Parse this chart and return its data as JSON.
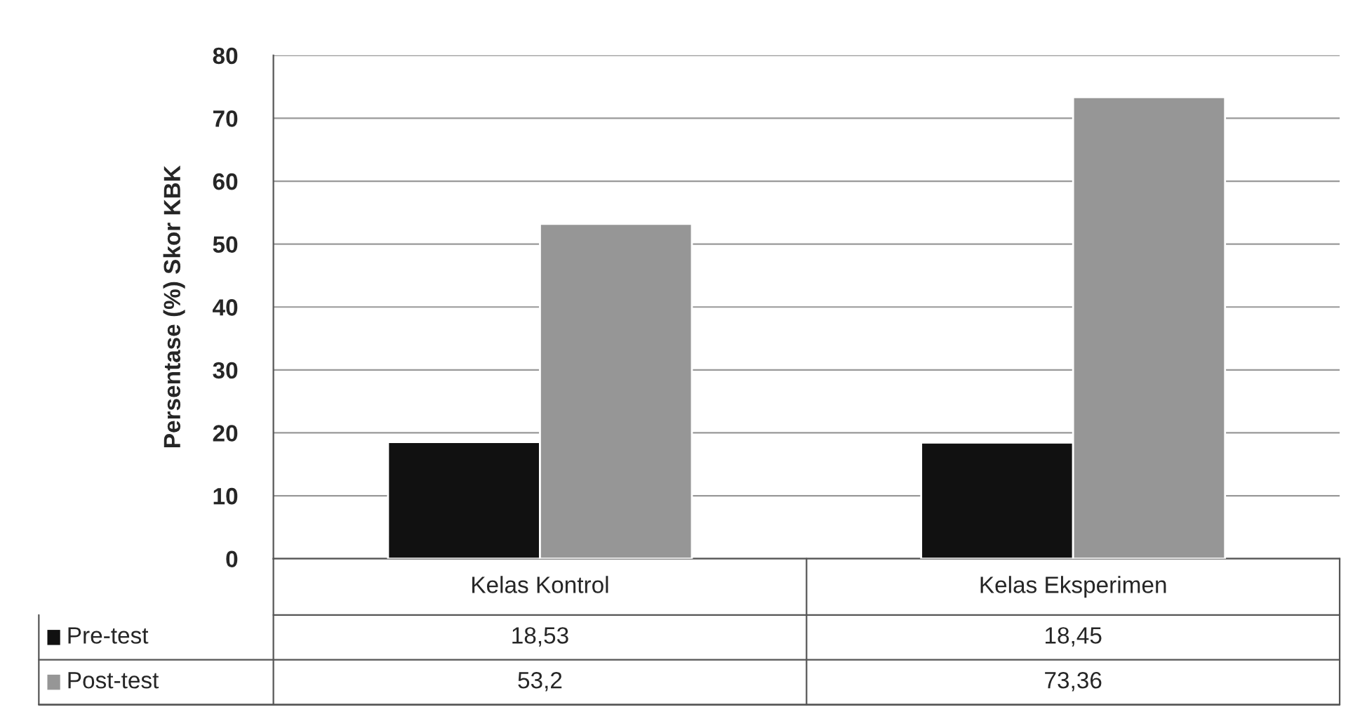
{
  "chart_data": {
    "type": "bar",
    "ylabel": "Persentase (%) Skor KBK",
    "categories": [
      "Kelas Kontrol",
      "Kelas Eksperimen"
    ],
    "series": [
      {
        "name": "Pre-test",
        "color": "#111111",
        "values": [
          18.53,
          18.45
        ],
        "value_labels": [
          "18,53",
          "18,45"
        ]
      },
      {
        "name": "Post-test",
        "color": "#969696",
        "values": [
          53.2,
          73.36
        ],
        "value_labels": [
          "53,2",
          "73,36"
        ]
      }
    ],
    "ylim": [
      0,
      80
    ],
    "yticks": [
      0,
      10,
      20,
      30,
      40,
      50,
      60,
      70,
      80
    ],
    "grid": "y",
    "legend": "bottom"
  }
}
